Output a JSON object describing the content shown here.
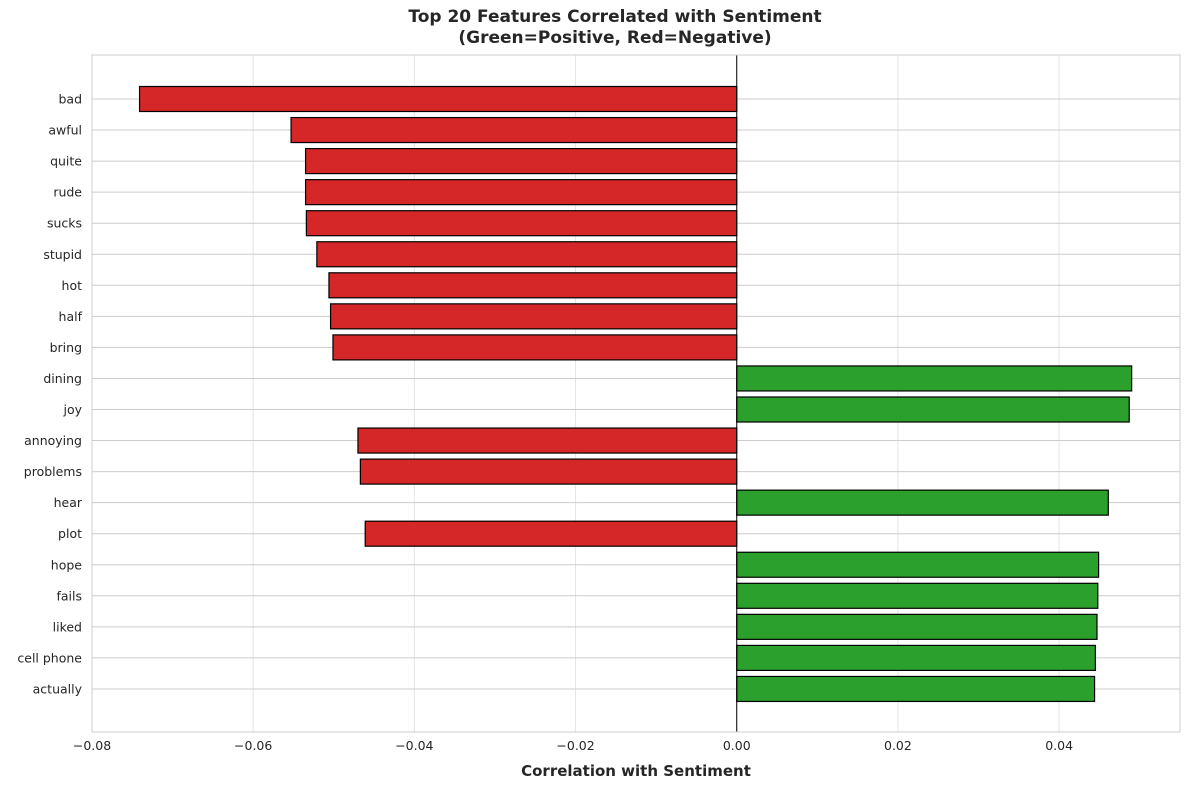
{
  "chart_data": {
    "type": "bar",
    "orientation": "horizontal",
    "title": "Top 20 Features Correlated with Sentiment\n(Green=Positive, Red=Negative)",
    "xlabel": "Correlation with Sentiment",
    "ylabel": "",
    "xlim": [
      -0.08,
      0.055
    ],
    "xticks": [
      -0.08,
      -0.06,
      -0.04,
      -0.02,
      0.0,
      0.02,
      0.04
    ],
    "xtick_labels": [
      "−0.08",
      "−0.06",
      "−0.04",
      "−0.02",
      "0.00",
      "0.02",
      "0.04"
    ],
    "grid": true,
    "categories": [
      "bad",
      "awful",
      "quite",
      "rude",
      "sucks",
      "stupid",
      "hot",
      "half",
      "bring",
      "dining",
      "joy",
      "annoying",
      "problems",
      "hear",
      "plot",
      "hope",
      "fails",
      "liked",
      "cell phone",
      "actually"
    ],
    "values": [
      -0.0741,
      -0.0553,
      -0.0535,
      -0.0535,
      -0.0534,
      -0.0521,
      -0.0506,
      -0.0504,
      -0.0501,
      0.049,
      0.0487,
      -0.047,
      -0.0467,
      0.0461,
      -0.0461,
      0.0449,
      0.0448,
      0.0447,
      0.0445,
      0.0444
    ],
    "colors": {
      "positive": "#2ca02c",
      "negative": "#d62728",
      "edge": "#000000",
      "grid": "#e5e5e5",
      "hgrid": "#cccccc",
      "frame": "#cccccc",
      "zero_line": "#000000"
    }
  }
}
